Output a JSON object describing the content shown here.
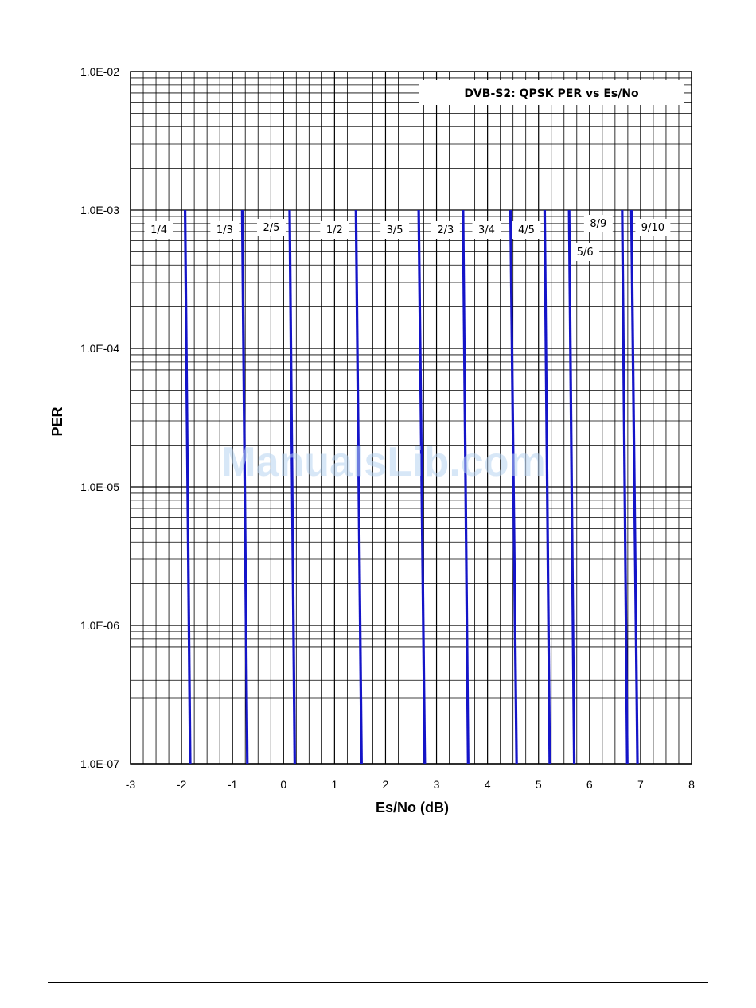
{
  "watermark": "ManualsLib.com",
  "chart_data": {
    "type": "line",
    "title": "DVB-S2: QPSK PER vs Es/No",
    "xlabel": "Es/No (dB)",
    "ylabel": "PER",
    "xlim": [
      -3,
      8
    ],
    "ylim": [
      1e-07,
      0.01
    ],
    "yscale": "log",
    "grid": true,
    "x_ticks": [
      "-3",
      "-2",
      "-1",
      "0",
      "1",
      "2",
      "3",
      "4",
      "5",
      "6",
      "7",
      "8"
    ],
    "y_ticks": [
      "1.0E-07",
      "1.0E-06",
      "1.0E-05",
      "1.0E-04",
      "1.0E-03",
      "1.0E-02"
    ],
    "line_color": "#1414c8",
    "series": [
      {
        "name": "1/4",
        "x": [
          -1.93,
          -1.83
        ],
        "y": [
          0.001,
          1e-07
        ]
      },
      {
        "name": "1/3",
        "x": [
          -0.81,
          -0.71
        ],
        "y": [
          0.001,
          1e-07
        ]
      },
      {
        "name": "2/5",
        "x": [
          0.12,
          0.22
        ],
        "y": [
          0.001,
          1e-07
        ]
      },
      {
        "name": "1/2",
        "x": [
          1.42,
          1.53
        ],
        "y": [
          0.001,
          1e-07
        ]
      },
      {
        "name": "3/5",
        "x": [
          2.65,
          2.77
        ],
        "y": [
          0.001,
          1e-07
        ]
      },
      {
        "name": "2/3",
        "x": [
          3.52,
          3.62
        ],
        "y": [
          0.001,
          1e-07
        ]
      },
      {
        "name": "3/4",
        "x": [
          4.45,
          4.57
        ],
        "y": [
          0.001,
          1e-07
        ]
      },
      {
        "name": "4/5",
        "x": [
          5.12,
          5.22
        ],
        "y": [
          0.001,
          1e-07
        ]
      },
      {
        "name": "5/6",
        "x": [
          5.6,
          5.7
        ],
        "y": [
          0.001,
          1e-07
        ]
      },
      {
        "name": "8/9",
        "x": [
          6.64,
          6.74
        ],
        "y": [
          0.001,
          1e-07
        ]
      },
      {
        "name": "9/10",
        "x": [
          6.82,
          6.94
        ],
        "y": [
          0.001,
          1e-07
        ]
      }
    ]
  }
}
